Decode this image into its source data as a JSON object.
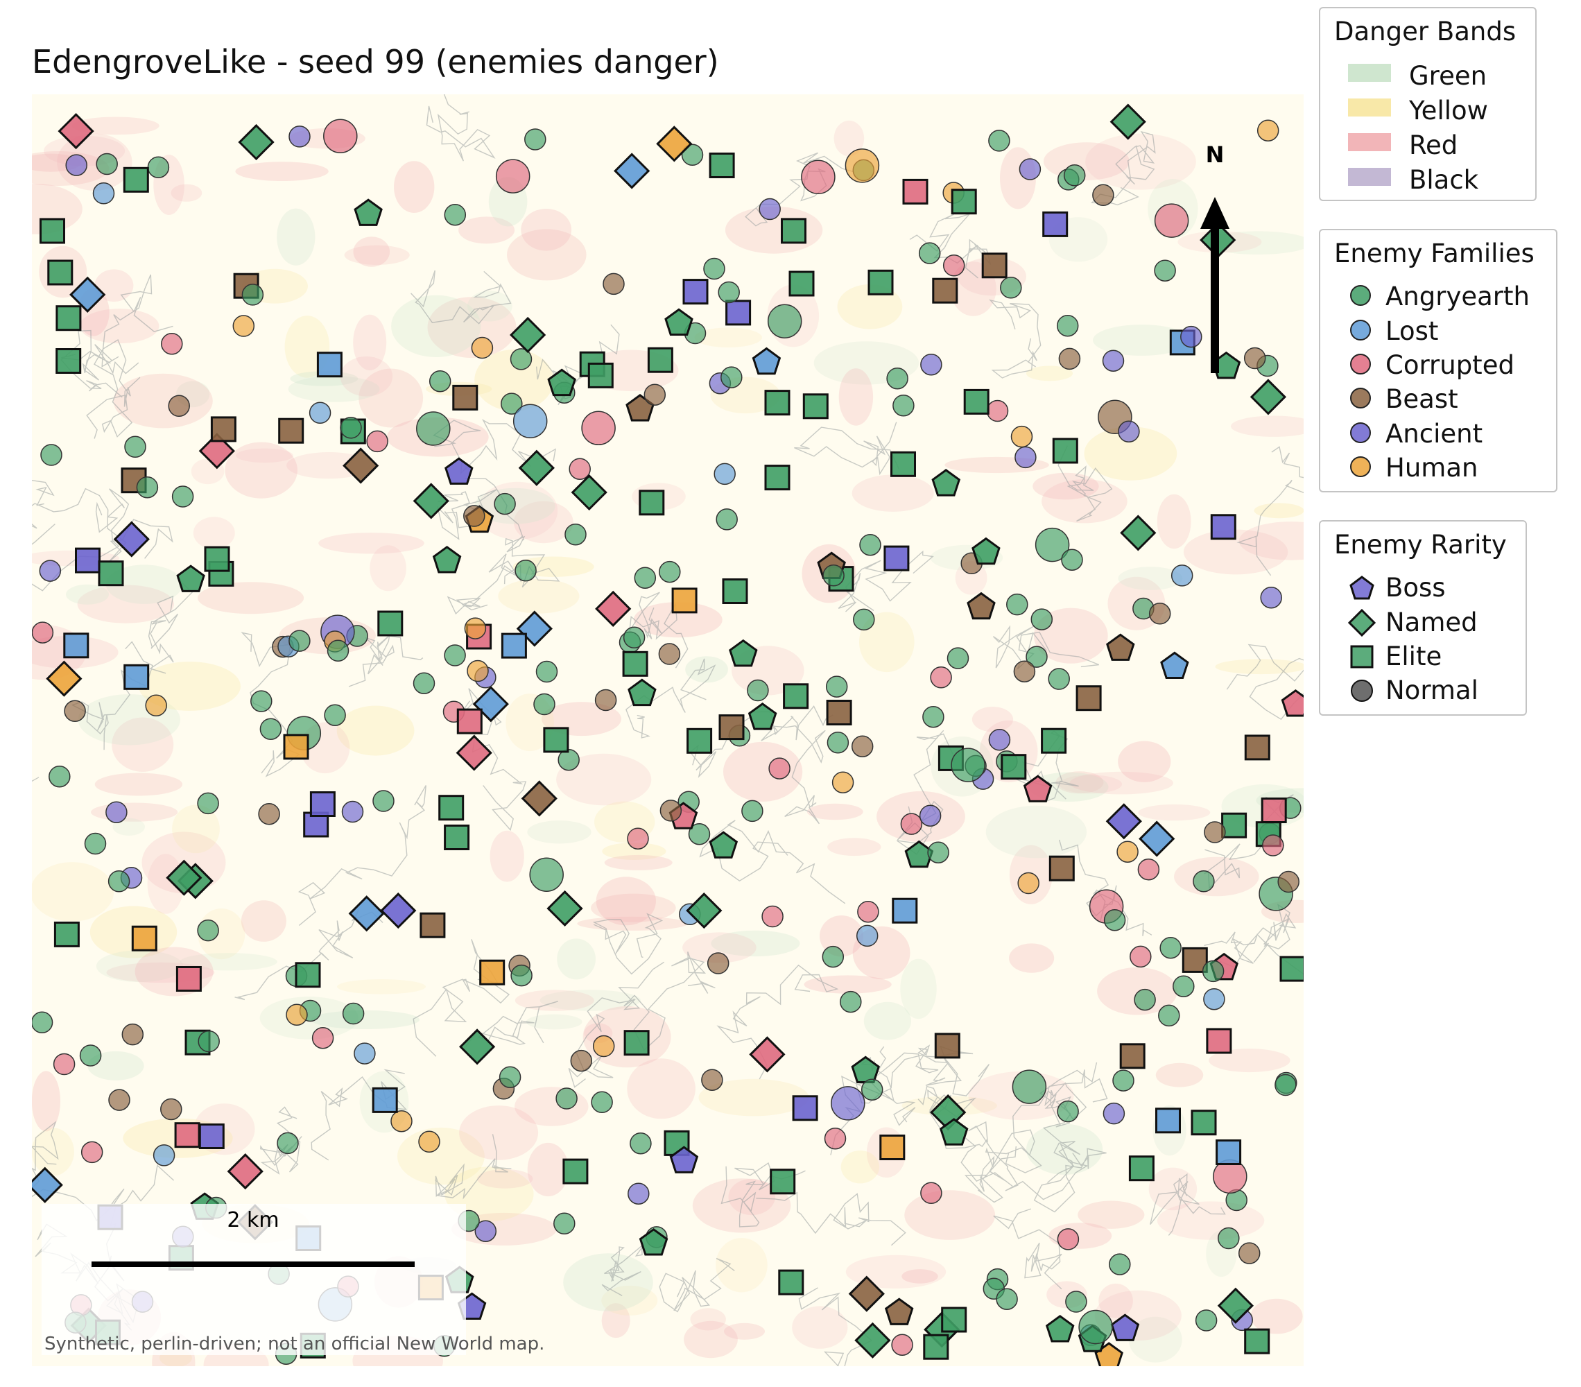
{
  "title": "EdengroveLike - seed 99 (enemies danger)",
  "map": {
    "background": "#fffcef",
    "scale_bar": {
      "label": "2 km"
    },
    "north_arrow": {
      "label": "N"
    },
    "credit": "Synthetic, perlin-driven; not an official New World map."
  },
  "legends": {
    "danger": {
      "title": "Danger Bands",
      "items": [
        {
          "label": "Green",
          "color": "#cfe6cf"
        },
        {
          "label": "Yellow",
          "color": "#f8e8a8"
        },
        {
          "label": "Red",
          "color": "#f2b5b8"
        },
        {
          "label": "Black",
          "color": "#c3b8d4"
        }
      ]
    },
    "families": {
      "title": "Enemy Families",
      "items": [
        {
          "label": "Angryearth",
          "color": "#3f9e65"
        },
        {
          "label": "Lost",
          "color": "#5f9bd6"
        },
        {
          "label": "Corrupted",
          "color": "#df6a7f"
        },
        {
          "label": "Beast",
          "color": "#8a6341"
        },
        {
          "label": "Ancient",
          "color": "#6c64cf"
        },
        {
          "label": "Human",
          "color": "#eca43b"
        }
      ]
    },
    "rarity": {
      "title": "Enemy Rarity",
      "items": [
        {
          "label": "Boss",
          "shape": "pentagon",
          "color": "#6c64cf"
        },
        {
          "label": "Named",
          "shape": "diamond",
          "color": "#3f9e65"
        },
        {
          "label": "Elite",
          "shape": "square",
          "color": "#3f9e65"
        },
        {
          "label": "Normal",
          "shape": "circle",
          "color": "#555555"
        }
      ]
    }
  }
}
